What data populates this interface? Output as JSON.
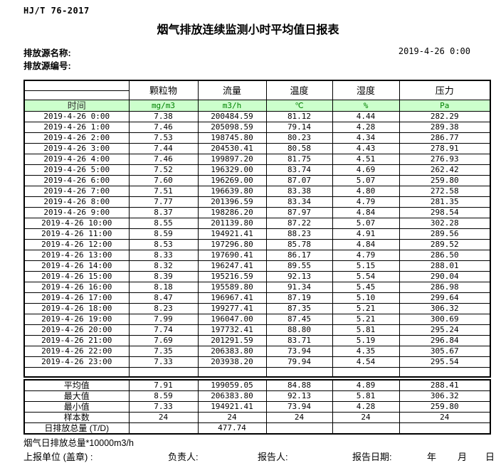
{
  "doc": {
    "standard": "HJ/T  76-2017",
    "title": "烟气排放连续监测小时平均值日报表",
    "source_name_label": "排放源名称:",
    "source_id_label": "排放源编号:",
    "datetime": "2019-4-26 0:00"
  },
  "table": {
    "time_header": "时间",
    "columns": [
      {
        "name": "颗粒物",
        "unit": "mg/m3"
      },
      {
        "name": "流量",
        "unit": "m3/h"
      },
      {
        "name": "温度",
        "unit": "℃"
      },
      {
        "name": "湿度",
        "unit": "%"
      },
      {
        "name": "压力",
        "unit": "Pa"
      }
    ],
    "rows": [
      {
        "time": "2019-4-26 0:00",
        "values": [
          "7.38",
          "200484.59",
          "81.12",
          "4.44",
          "282.29"
        ]
      },
      {
        "time": "2019-4-26 1:00",
        "values": [
          "7.46",
          "205098.59",
          "79.14",
          "4.28",
          "289.38"
        ]
      },
      {
        "time": "2019-4-26 2:00",
        "values": [
          "7.53",
          "198745.80",
          "80.23",
          "4.34",
          "286.77"
        ]
      },
      {
        "time": "2019-4-26 3:00",
        "values": [
          "7.44",
          "204530.41",
          "80.58",
          "4.43",
          "278.91"
        ]
      },
      {
        "time": "2019-4-26 4:00",
        "values": [
          "7.46",
          "199897.20",
          "81.75",
          "4.51",
          "276.93"
        ]
      },
      {
        "time": "2019-4-26 5:00",
        "values": [
          "7.52",
          "196329.00",
          "83.74",
          "4.69",
          "262.42"
        ]
      },
      {
        "time": "2019-4-26 6:00",
        "values": [
          "7.60",
          "196269.00",
          "87.07",
          "5.07",
          "259.80"
        ]
      },
      {
        "time": "2019-4-26 7:00",
        "values": [
          "7.51",
          "196639.80",
          "83.38",
          "4.80",
          "272.58"
        ]
      },
      {
        "time": "2019-4-26 8:00",
        "values": [
          "7.77",
          "201396.59",
          "83.34",
          "4.79",
          "281.35"
        ]
      },
      {
        "time": "2019-4-26 9:00",
        "values": [
          "8.37",
          "198286.20",
          "87.97",
          "4.84",
          "298.54"
        ]
      },
      {
        "time": "2019-4-26 10:00",
        "values": [
          "8.55",
          "201139.80",
          "87.22",
          "5.07",
          "302.28"
        ]
      },
      {
        "time": "2019-4-26 11:00",
        "values": [
          "8.59",
          "194921.41",
          "88.23",
          "4.91",
          "289.56"
        ]
      },
      {
        "time": "2019-4-26 12:00",
        "values": [
          "8.53",
          "197296.80",
          "85.78",
          "4.84",
          "289.52"
        ]
      },
      {
        "time": "2019-4-26 13:00",
        "values": [
          "8.33",
          "197690.41",
          "86.17",
          "4.79",
          "286.50"
        ]
      },
      {
        "time": "2019-4-26 14:00",
        "values": [
          "8.32",
          "196247.41",
          "89.55",
          "5.15",
          "288.01"
        ]
      },
      {
        "time": "2019-4-26 15:00",
        "values": [
          "8.39",
          "195216.59",
          "92.13",
          "5.54",
          "290.04"
        ]
      },
      {
        "time": "2019-4-26 16:00",
        "values": [
          "8.18",
          "195589.80",
          "91.34",
          "5.45",
          "286.98"
        ]
      },
      {
        "time": "2019-4-26 17:00",
        "values": [
          "8.47",
          "196967.41",
          "87.19",
          "5.10",
          "299.64"
        ]
      },
      {
        "time": "2019-4-26 18:00",
        "values": [
          "8.23",
          "199277.41",
          "87.35",
          "5.21",
          "306.32"
        ]
      },
      {
        "time": "2019-4-26 19:00",
        "values": [
          "7.99",
          "196047.00",
          "87.45",
          "5.21",
          "300.69"
        ]
      },
      {
        "time": "2019-4-26 20:00",
        "values": [
          "7.74",
          "197732.41",
          "88.80",
          "5.81",
          "295.24"
        ]
      },
      {
        "time": "2019-4-26 21:00",
        "values": [
          "7.69",
          "201291.59",
          "83.71",
          "5.19",
          "296.84"
        ]
      },
      {
        "time": "2019-4-26 22:00",
        "values": [
          "7.35",
          "206383.80",
          "73.94",
          "4.35",
          "305.67"
        ]
      },
      {
        "time": "2019-4-26 23:00",
        "values": [
          "7.33",
          "203938.20",
          "79.94",
          "4.54",
          "295.54"
        ]
      }
    ],
    "summary": [
      {
        "label": "平均值",
        "values": [
          "7.91",
          "199059.05",
          "84.88",
          "4.89",
          "288.41"
        ]
      },
      {
        "label": "最大值",
        "values": [
          "8.59",
          "206383.80",
          "92.13",
          "5.81",
          "306.32"
        ]
      },
      {
        "label": "最小值",
        "values": [
          "7.33",
          "194921.41",
          "73.94",
          "4.28",
          "259.80"
        ]
      },
      {
        "label": "样本数",
        "values": [
          "24",
          "24",
          "24",
          "24",
          "24"
        ]
      },
      {
        "label": "日排放总量 (T/D)",
        "values": [
          "",
          "477.74",
          "",
          "",
          ""
        ]
      }
    ]
  },
  "footer": {
    "note": "烟气日排放总量*10000m3/h",
    "report_unit_label": "上报单位 (盖章) :",
    "responsible_label": "负责人:",
    "reporter_label": "报告人:",
    "report_date_label": "报告日期:",
    "year_label": "年",
    "month_label": "月",
    "day_label": "日"
  },
  "colors": {
    "header_row_bg": "#ccffcc",
    "unit_text": "#008000"
  }
}
